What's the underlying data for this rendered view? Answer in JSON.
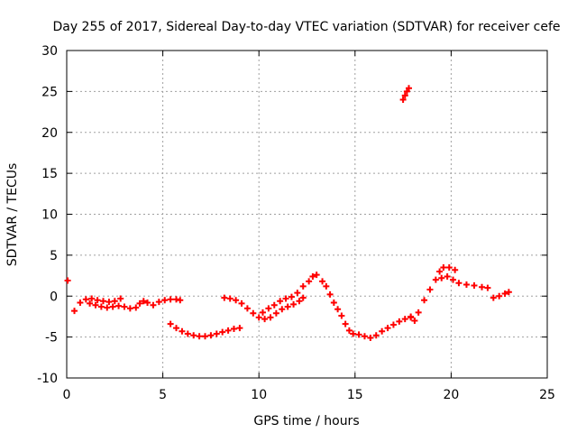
{
  "chart_data": {
    "type": "scatter",
    "title": "Day 255 of 2017, Sidereal Day-to-day VTEC variation (SDTVAR) for receiver cefe",
    "xlabel": "GPS time / hours",
    "ylabel": "SDTVAR / TECUs",
    "xlim": [
      0,
      25
    ],
    "ylim": [
      -10,
      30
    ],
    "xticks": [
      0,
      5,
      10,
      15,
      20,
      25
    ],
    "yticks": [
      -10,
      -5,
      0,
      5,
      10,
      15,
      20,
      25,
      30
    ],
    "grid": true,
    "marker": "+",
    "color": "#ff0000",
    "series": [
      {
        "name": "cefe",
        "points": [
          [
            0.05,
            1.9
          ],
          [
            0.4,
            -1.8
          ],
          [
            0.7,
            -0.8
          ],
          [
            1.0,
            -0.4
          ],
          [
            1.3,
            -0.3
          ],
          [
            1.6,
            -0.5
          ],
          [
            1.9,
            -0.6
          ],
          [
            2.2,
            -0.7
          ],
          [
            2.5,
            -0.6
          ],
          [
            2.8,
            -0.3
          ],
          [
            1.2,
            -0.9
          ],
          [
            1.5,
            -1.1
          ],
          [
            1.8,
            -1.3
          ],
          [
            2.1,
            -1.4
          ],
          [
            2.4,
            -1.3
          ],
          [
            2.7,
            -1.2
          ],
          [
            3.0,
            -1.3
          ],
          [
            3.3,
            -1.5
          ],
          [
            3.6,
            -1.4
          ],
          [
            3.8,
            -0.9
          ],
          [
            4.0,
            -0.6
          ],
          [
            4.2,
            -0.8
          ],
          [
            4.5,
            -1.1
          ],
          [
            4.8,
            -0.7
          ],
          [
            5.1,
            -0.5
          ],
          [
            5.4,
            -0.4
          ],
          [
            5.7,
            -0.4
          ],
          [
            5.9,
            -0.5
          ],
          [
            5.4,
            -3.4
          ],
          [
            5.7,
            -3.9
          ],
          [
            6.0,
            -4.3
          ],
          [
            6.3,
            -4.6
          ],
          [
            6.6,
            -4.8
          ],
          [
            6.9,
            -4.9
          ],
          [
            7.2,
            -4.9
          ],
          [
            7.5,
            -4.8
          ],
          [
            7.8,
            -4.6
          ],
          [
            8.1,
            -4.4
          ],
          [
            8.4,
            -4.2
          ],
          [
            8.7,
            -4.0
          ],
          [
            9.0,
            -3.9
          ],
          [
            8.2,
            -0.2
          ],
          [
            8.5,
            -0.3
          ],
          [
            8.8,
            -0.5
          ],
          [
            9.1,
            -0.9
          ],
          [
            9.4,
            -1.5
          ],
          [
            9.7,
            -2.1
          ],
          [
            10.0,
            -2.6
          ],
          [
            10.3,
            -2.8
          ],
          [
            10.6,
            -2.6
          ],
          [
            10.9,
            -2.1
          ],
          [
            11.2,
            -1.6
          ],
          [
            11.5,
            -1.3
          ],
          [
            11.8,
            -1.0
          ],
          [
            12.1,
            -0.6
          ],
          [
            12.3,
            -0.2
          ],
          [
            10.2,
            -2.0
          ],
          [
            10.5,
            -1.5
          ],
          [
            10.8,
            -1.1
          ],
          [
            11.1,
            -0.6
          ],
          [
            11.4,
            -0.3
          ],
          [
            11.7,
            -0.1
          ],
          [
            12.0,
            0.4
          ],
          [
            12.3,
            1.2
          ],
          [
            12.6,
            1.8
          ],
          [
            12.8,
            2.4
          ],
          [
            13.0,
            2.6
          ],
          [
            13.3,
            1.8
          ],
          [
            13.5,
            1.2
          ],
          [
            13.7,
            0.2
          ],
          [
            13.9,
            -0.8
          ],
          [
            14.1,
            -1.6
          ],
          [
            14.3,
            -2.4
          ],
          [
            14.5,
            -3.4
          ],
          [
            14.7,
            -4.2
          ],
          [
            14.9,
            -4.6
          ],
          [
            15.2,
            -4.7
          ],
          [
            15.5,
            -4.9
          ],
          [
            15.8,
            -5.1
          ],
          [
            16.1,
            -4.8
          ],
          [
            16.4,
            -4.3
          ],
          [
            16.7,
            -3.9
          ],
          [
            17.0,
            -3.5
          ],
          [
            17.3,
            -3.1
          ],
          [
            17.6,
            -2.8
          ],
          [
            17.9,
            -2.5
          ],
          [
            17.5,
            24.0
          ],
          [
            17.6,
            24.5
          ],
          [
            17.7,
            25.0
          ],
          [
            17.8,
            25.4
          ],
          [
            17.9,
            -2.6
          ],
          [
            18.1,
            -3.0
          ],
          [
            18.3,
            -2.0
          ],
          [
            18.6,
            -0.5
          ],
          [
            18.9,
            0.8
          ],
          [
            19.2,
            2.0
          ],
          [
            19.4,
            3.0
          ],
          [
            19.6,
            3.5
          ],
          [
            19.9,
            3.5
          ],
          [
            20.2,
            3.2
          ],
          [
            19.5,
            2.2
          ],
          [
            19.8,
            2.4
          ],
          [
            20.1,
            2.0
          ],
          [
            20.4,
            1.6
          ],
          [
            20.8,
            1.4
          ],
          [
            21.2,
            1.3
          ],
          [
            21.6,
            1.1
          ],
          [
            21.9,
            1.0
          ],
          [
            22.2,
            -0.2
          ],
          [
            22.5,
            0.0
          ],
          [
            22.8,
            0.3
          ],
          [
            23.0,
            0.5
          ]
        ]
      }
    ]
  }
}
